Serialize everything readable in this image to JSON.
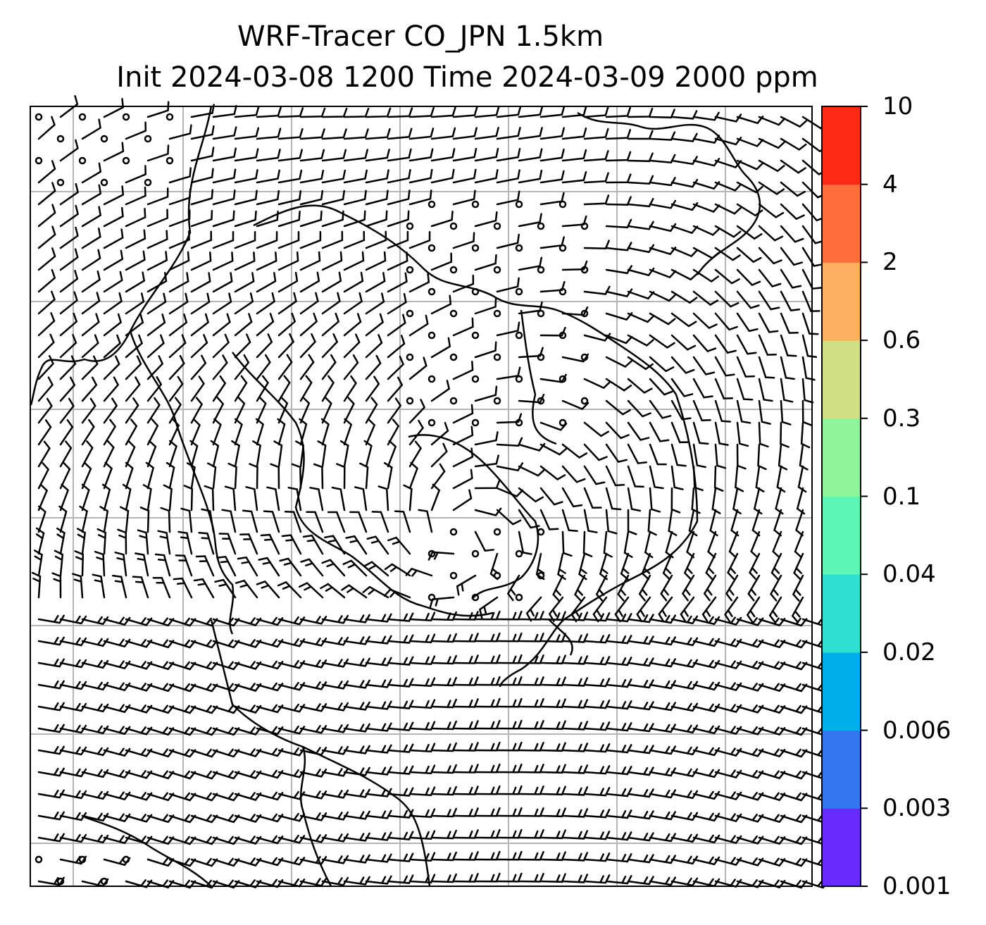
{
  "title": {
    "line1": "WRF-Tracer CO_JPN 1.5km",
    "line2": "Init 2024-03-08 1200 Time 2024-03-09 2000 ppm"
  },
  "colorbar": {
    "levels": [
      "0.001",
      "0.003",
      "0.006",
      "0.02",
      "0.04",
      "0.1",
      "0.3",
      "0.6",
      "2",
      "4",
      "10"
    ],
    "colors": [
      "#6a2bff",
      "#3377f0",
      "#00b0ea",
      "#2edfd2",
      "#5cf7b7",
      "#8ef59a",
      "#cfdf82",
      "#fcb060",
      "#ff6e3a",
      "#ff2a15"
    ]
  },
  "map": {
    "gridlines": true,
    "coastline_color": "#000000",
    "barb_color": "#000000",
    "tracer_field": "none visible"
  }
}
